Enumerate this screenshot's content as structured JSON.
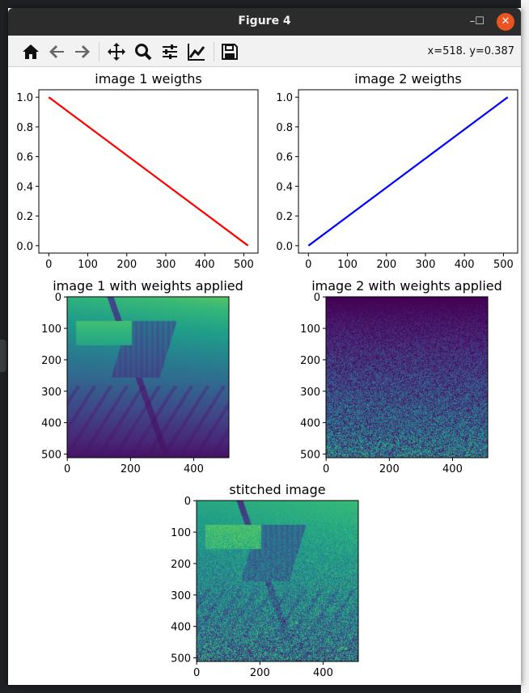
{
  "window": {
    "title": "Figure 4",
    "minimize": "–",
    "maximize": "☐",
    "close": "✕"
  },
  "toolbar": {
    "buttons": [
      {
        "name": "home-icon"
      },
      {
        "name": "back-icon"
      },
      {
        "name": "forward-icon"
      },
      {
        "name": "pan-icon"
      },
      {
        "name": "zoom-icon"
      },
      {
        "name": "subplots-icon"
      },
      {
        "name": "edit-axis-icon"
      },
      {
        "name": "save-icon"
      }
    ],
    "coords": "x=518. y=0.387"
  },
  "chart_data": [
    {
      "type": "line",
      "title": "image 1 weigths",
      "x": [
        0,
        511
      ],
      "y": [
        1.0,
        0.0
      ],
      "color": "#ff0000",
      "xticks": [
        0,
        100,
        200,
        300,
        400,
        500
      ],
      "yticks": [
        0.0,
        0.2,
        0.4,
        0.6,
        0.8,
        1.0
      ],
      "xlim": [
        -25.5,
        536.5
      ],
      "ylim": [
        -0.05,
        1.05
      ]
    },
    {
      "type": "line",
      "title": "image 2 weigths",
      "x": [
        0,
        511
      ],
      "y": [
        0.0,
        1.0
      ],
      "color": "#0000ff",
      "xticks": [
        0,
        100,
        200,
        300,
        400,
        500
      ],
      "yticks": [
        0.0,
        0.2,
        0.4,
        0.6,
        0.8,
        1.0
      ],
      "xlim": [
        -25.5,
        536.5
      ],
      "ylim": [
        -0.05,
        1.05
      ]
    },
    {
      "type": "heatmap",
      "title": "image 1 with weights applied",
      "colormap": "viridis",
      "shape": [
        512,
        512
      ],
      "xticks": [
        0,
        200,
        400
      ],
      "yticks": [
        0,
        100,
        200,
        300,
        400,
        500
      ],
      "extent": [
        0,
        512
      ]
    },
    {
      "type": "heatmap",
      "title": "image 2 with weights applied",
      "colormap": "viridis",
      "shape": [
        512,
        512
      ],
      "xticks": [
        0,
        200,
        400
      ],
      "yticks": [
        0,
        100,
        200,
        300,
        400,
        500
      ],
      "extent": [
        0,
        512
      ]
    },
    {
      "type": "heatmap",
      "title": "stitched image",
      "colormap": "viridis",
      "shape": [
        512,
        512
      ],
      "xticks": [
        0,
        200,
        400
      ],
      "yticks": [
        0,
        100,
        200,
        300,
        400,
        500
      ],
      "extent": [
        0,
        512
      ]
    }
  ]
}
